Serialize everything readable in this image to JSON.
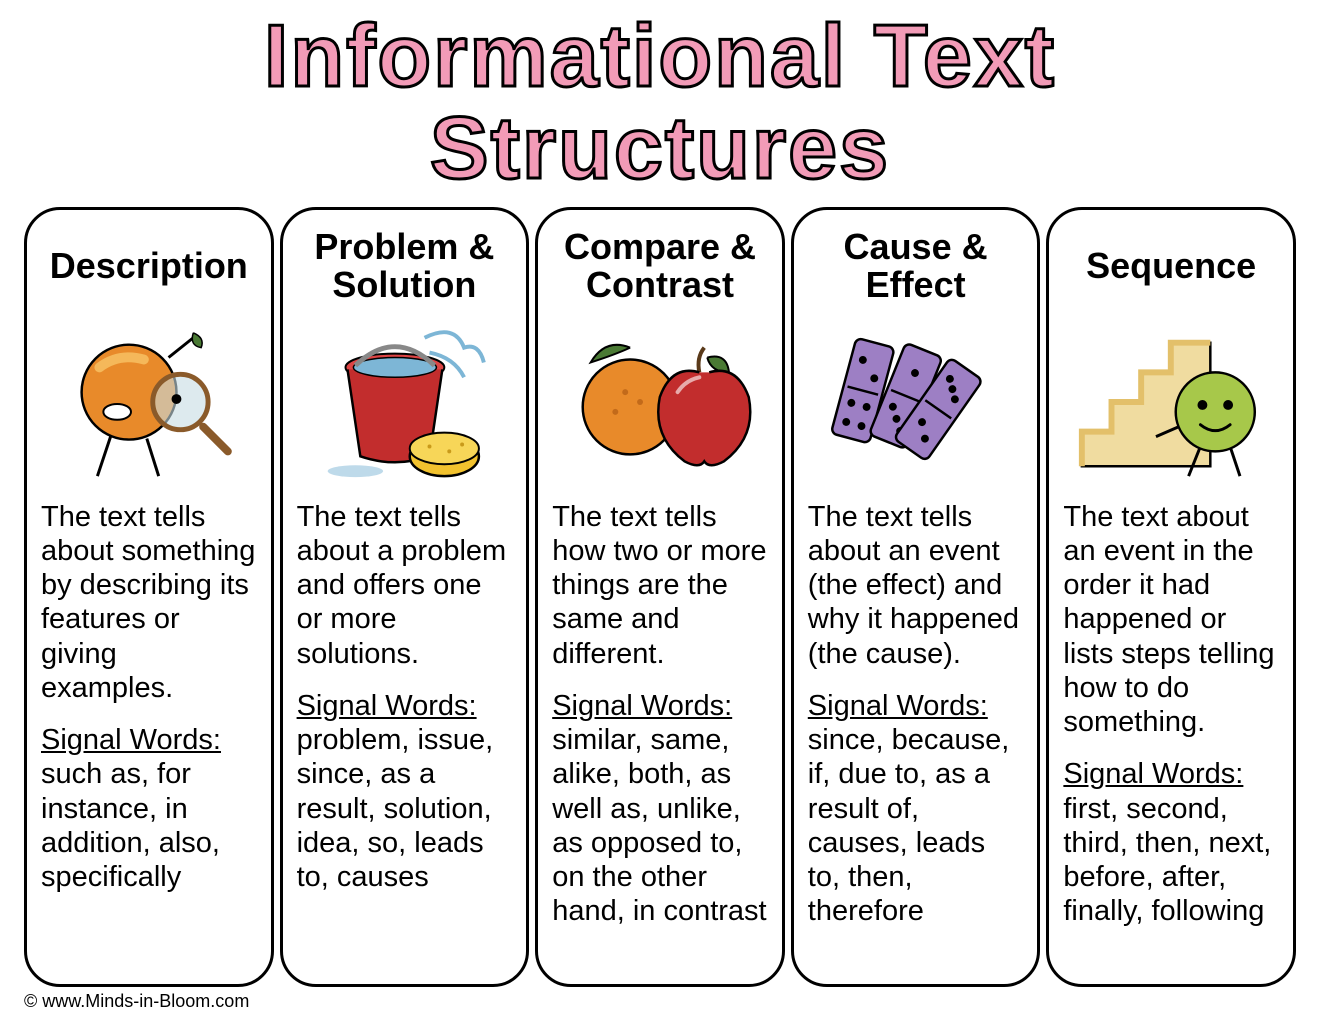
{
  "title": "Informational Text Structures",
  "title_color": "#f29bb7",
  "title_stroke": "#000000",
  "title_fontsize": 88,
  "background_color": "#ffffff",
  "card_border_color": "#000000",
  "card_border_radius": 36,
  "card_title_fontsize": 36,
  "body_fontsize": 29,
  "signal_label": "Signal Words:",
  "columns": [
    {
      "title": "Description",
      "description": "The text tells about something by describing its features or giving examples.",
      "signal_words": "such as, for instance, in addition, also, specifically",
      "icon": "orange-magnify",
      "colors": {
        "primary": "#e88a2a",
        "accent": "#f5b85a",
        "glass": "#c7dce2"
      }
    },
    {
      "title": "Problem & Solution",
      "description": "The text tells about a problem and offers one or more solutions.",
      "signal_words": "problem, issue, since, as a result, solution, idea, so, leads to, causes",
      "icon": "bucket-sponge",
      "colors": {
        "bucket": "#c22d2d",
        "sponge": "#f2c22e",
        "water": "#7db6d6"
      }
    },
    {
      "title": "Compare & Contrast",
      "description": "The text tells how two or more things are the same and different.",
      "signal_words": "similar, same, alike, both, as well as, unlike, as opposed to, on the other hand, in contrast",
      "icon": "orange-apple",
      "colors": {
        "orange": "#e88a2a",
        "apple": "#c22d2d",
        "leaf": "#4a7a34"
      }
    },
    {
      "title": "Cause & Effect",
      "description": "The text tells about an event (the effect) and why it happened (the cause).",
      "signal_words": "since, because, if, due to, as a result of, causes, leads to, then, therefore",
      "icon": "dominoes",
      "colors": {
        "domino": "#9d7fc4",
        "dot": "#000000"
      }
    },
    {
      "title": "Sequence",
      "description": "The text about an event in the order it had happened or lists steps telling how to do something.",
      "signal_words": "first, second, third, then, next, before, after, finally, following",
      "icon": "stairs-ball",
      "colors": {
        "ball": "#a7c84a",
        "stairs": "#e3c06a"
      }
    }
  ],
  "footer": "© www.Minds-in-Bloom.com"
}
